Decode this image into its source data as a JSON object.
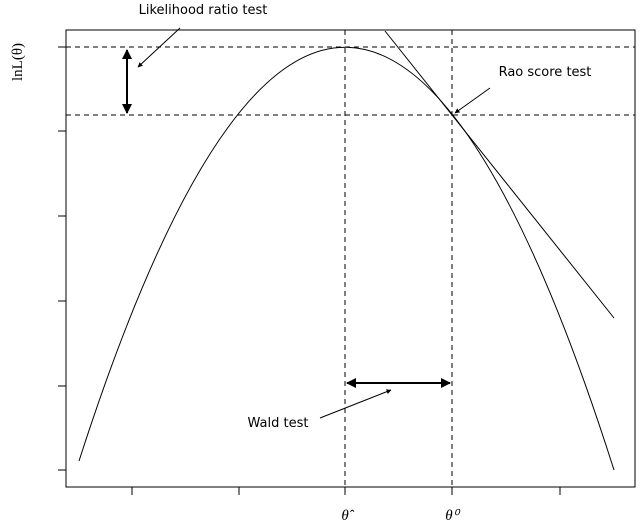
{
  "labels": {
    "likelihood_ratio": "Likelihood ratio test",
    "rao_score": "Rao score test",
    "wald": "Wald test"
  },
  "axes": {
    "y_label": "lnL(θ)",
    "x_hat": "θ̂",
    "x_null": "θ⁰"
  }
}
